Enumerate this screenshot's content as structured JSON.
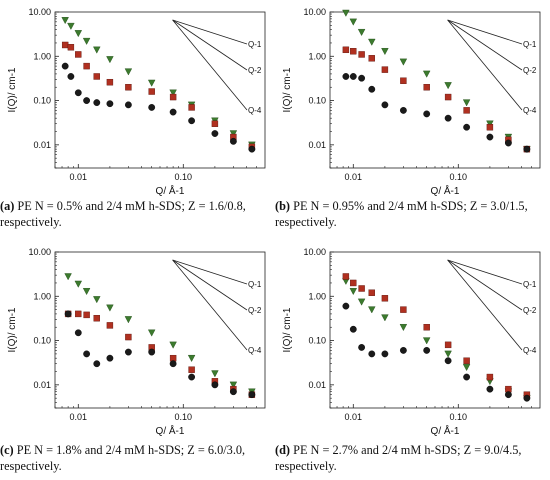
{
  "chart_data": [
    {
      "type": "scatter",
      "panel": "a",
      "ylabel": "I(Q)/ cm-1",
      "xlabel": "Q/ Å-1",
      "xscale": "log",
      "yscale": "log",
      "xlim": [
        0.006,
        0.6
      ],
      "ylim": [
        0.003,
        10
      ],
      "xticks": [
        "0.01",
        "0.10"
      ],
      "yticks": [
        "10.00",
        "1.00",
        "0.10",
        "0.01"
      ],
      "slope_lines": [
        "Q-1",
        "Q-2",
        "Q-4"
      ],
      "series": [
        {
          "marker": "triangle-down",
          "color": "#3c7a2e",
          "x": [
            0.0075,
            0.0085,
            0.01,
            0.012,
            0.015,
            0.02,
            0.03,
            0.05,
            0.08,
            0.12,
            0.2,
            0.3,
            0.45
          ],
          "y": [
            6.5,
            4.8,
            3.3,
            2.2,
            1.4,
            0.85,
            0.45,
            0.25,
            0.15,
            0.08,
            0.035,
            0.018,
            0.01
          ]
        },
        {
          "marker": "square",
          "color": "#b03020",
          "x": [
            0.0075,
            0.0085,
            0.01,
            0.012,
            0.015,
            0.02,
            0.03,
            0.05,
            0.08,
            0.12,
            0.2,
            0.3,
            0.45
          ],
          "y": [
            1.8,
            1.6,
            1.1,
            0.6,
            0.35,
            0.26,
            0.2,
            0.16,
            0.12,
            0.07,
            0.03,
            0.015,
            0.009
          ]
        },
        {
          "marker": "circle",
          "color": "#1a1a1a",
          "x": [
            0.0075,
            0.0085,
            0.01,
            0.012,
            0.015,
            0.02,
            0.03,
            0.05,
            0.08,
            0.12,
            0.2,
            0.3,
            0.45
          ],
          "y": [
            0.6,
            0.35,
            0.15,
            0.1,
            0.09,
            0.085,
            0.08,
            0.07,
            0.055,
            0.035,
            0.018,
            0.012,
            0.008
          ]
        }
      ],
      "caption": {
        "letter": "(a)",
        "text": " PE N = 0.5% and 2/4 mM h-SDS; Z = 1.6/0.8, respectively."
      }
    },
    {
      "type": "scatter",
      "panel": "b",
      "ylabel": "I(Q)/ cm-1",
      "xlabel": "Q/ Å-1",
      "xscale": "log",
      "yscale": "log",
      "xlim": [
        0.006,
        0.6
      ],
      "ylim": [
        0.003,
        10
      ],
      "xticks": [
        "0.01",
        "0.10"
      ],
      "yticks": [
        "10.00",
        "1.00",
        "0.10",
        "0.01"
      ],
      "slope_lines": [
        "Q-1",
        "Q-2",
        "Q-4"
      ],
      "series": [
        {
          "marker": "triangle-down",
          "color": "#3c7a2e",
          "x": [
            0.0085,
            0.01,
            0.012,
            0.015,
            0.02,
            0.03,
            0.05,
            0.08,
            0.12,
            0.2,
            0.3,
            0.45
          ],
          "y": [
            9.5,
            6,
            3.5,
            2.1,
            1.3,
            0.75,
            0.4,
            0.22,
            0.09,
            0.03,
            0.015,
            0.008
          ]
        },
        {
          "marker": "square",
          "color": "#b03020",
          "x": [
            0.0085,
            0.01,
            0.012,
            0.015,
            0.02,
            0.03,
            0.05,
            0.08,
            0.12,
            0.2,
            0.3,
            0.45
          ],
          "y": [
            1.4,
            1.3,
            1.1,
            0.9,
            0.5,
            0.28,
            0.2,
            0.12,
            0.06,
            0.025,
            0.013,
            0.008
          ]
        },
        {
          "marker": "circle",
          "color": "#1a1a1a",
          "x": [
            0.0085,
            0.01,
            0.012,
            0.015,
            0.02,
            0.03,
            0.05,
            0.08,
            0.12,
            0.2,
            0.3,
            0.45
          ],
          "y": [
            0.35,
            0.35,
            0.32,
            0.18,
            0.08,
            0.06,
            0.05,
            0.04,
            0.025,
            0.015,
            0.011,
            0.008
          ]
        }
      ],
      "caption": {
        "letter": "(b)",
        "text": " PE N = 0.95% and 2/4 mM h-SDS; Z = 3.0/1.5, respectively."
      }
    },
    {
      "type": "scatter",
      "panel": "c",
      "ylabel": "I(Q)/ cm-1",
      "xlabel": "Q/ Å-1",
      "xscale": "log",
      "yscale": "log",
      "xlim": [
        0.006,
        0.6
      ],
      "ylim": [
        0.003,
        10
      ],
      "xticks": [
        "0.01",
        "0.10"
      ],
      "yticks": [
        "10.00",
        "1.00",
        "0.10",
        "0.01"
      ],
      "slope_lines": [
        "Q-1",
        "Q-2",
        "Q-4"
      ],
      "series": [
        {
          "marker": "triangle-down",
          "color": "#3c7a2e",
          "x": [
            0.008,
            0.01,
            0.012,
            0.015,
            0.02,
            0.03,
            0.05,
            0.08,
            0.12,
            0.2,
            0.3,
            0.45
          ],
          "y": [
            2.8,
            1.9,
            1.3,
            0.85,
            0.55,
            0.3,
            0.15,
            0.08,
            0.04,
            0.018,
            0.01,
            0.007
          ]
        },
        {
          "marker": "square",
          "color": "#b03020",
          "x": [
            0.008,
            0.01,
            0.012,
            0.015,
            0.02,
            0.03,
            0.05,
            0.08,
            0.12,
            0.2,
            0.3,
            0.45
          ],
          "y": [
            0.4,
            0.4,
            0.38,
            0.32,
            0.22,
            0.12,
            0.07,
            0.04,
            0.022,
            0.012,
            0.008,
            0.006
          ]
        },
        {
          "marker": "circle",
          "color": "#1a1a1a",
          "x": [
            0.008,
            0.01,
            0.012,
            0.015,
            0.02,
            0.03,
            0.05,
            0.08,
            0.12,
            0.2,
            0.3,
            0.45
          ],
          "y": [
            0.4,
            0.15,
            0.05,
            0.03,
            0.04,
            0.055,
            0.055,
            0.03,
            0.015,
            0.01,
            0.007,
            0.006
          ]
        }
      ],
      "caption": {
        "letter": "(c)",
        "text": " PE N = 1.8% and 2/4 mM h-SDS; Z = 6.0/3.0, respectively."
      }
    },
    {
      "type": "scatter",
      "panel": "d",
      "ylabel": "I(Q)/ cm-1",
      "xlabel": "Q/ Å-1",
      "xscale": "log",
      "yscale": "log",
      "xlim": [
        0.006,
        0.6
      ],
      "ylim": [
        0.003,
        10
      ],
      "xticks": [
        "0.01",
        "0.10"
      ],
      "yticks": [
        "10.00",
        "1.00",
        "0.10",
        "0.01"
      ],
      "slope_lines": [
        "Q-1",
        "Q-2",
        "Q-4"
      ],
      "series": [
        {
          "marker": "triangle-down",
          "color": "#3c7a2e",
          "x": [
            0.0085,
            0.01,
            0.012,
            0.015,
            0.02,
            0.03,
            0.05,
            0.08,
            0.12,
            0.2,
            0.3,
            0.45
          ],
          "y": [
            2.2,
            1.3,
            0.75,
            0.5,
            0.33,
            0.2,
            0.1,
            0.05,
            0.025,
            0.012,
            0.007,
            0.005
          ]
        },
        {
          "marker": "square",
          "color": "#b03020",
          "x": [
            0.0085,
            0.01,
            0.012,
            0.015,
            0.02,
            0.03,
            0.05,
            0.08,
            0.12,
            0.2,
            0.3,
            0.45
          ],
          "y": [
            2.8,
            2,
            1.5,
            1.2,
            0.9,
            0.5,
            0.2,
            0.08,
            0.035,
            0.015,
            0.008,
            0.006
          ]
        },
        {
          "marker": "circle",
          "color": "#1a1a1a",
          "x": [
            0.0085,
            0.01,
            0.012,
            0.015,
            0.02,
            0.03,
            0.05,
            0.08,
            0.12,
            0.2,
            0.3,
            0.45
          ],
          "y": [
            0.6,
            0.18,
            0.07,
            0.05,
            0.05,
            0.06,
            0.06,
            0.035,
            0.015,
            0.008,
            0.006,
            0.005
          ]
        }
      ],
      "caption": {
        "letter": "(d)",
        "text": " PE N = 2.7% and 2/4 mM h-SDS; Z = 9.0/4.5, respectively."
      }
    }
  ]
}
